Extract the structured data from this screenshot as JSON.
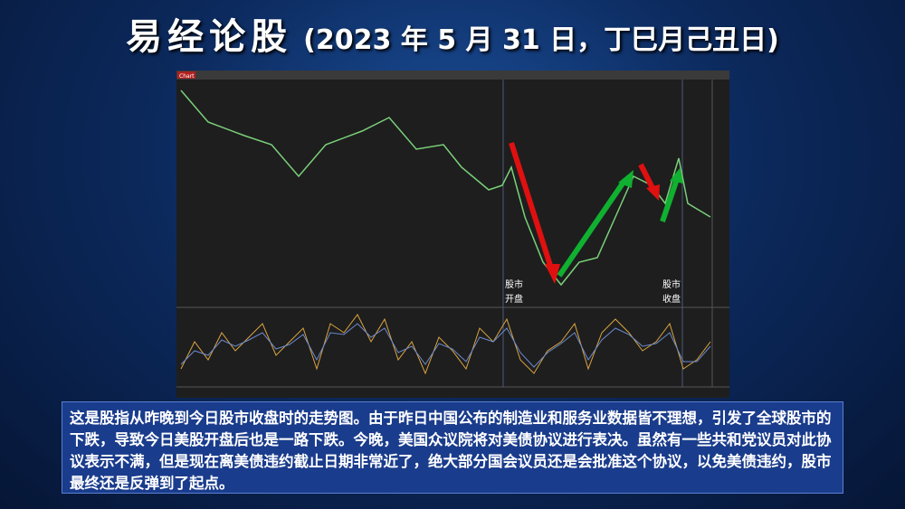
{
  "header": {
    "title": "易经论股",
    "subtitle": "(2023 年 5 月 31 日，丁巳月己丑日)"
  },
  "chart": {
    "window_label": "Chart",
    "open_label": [
      "股市",
      "开盘"
    ],
    "close_label": [
      "股市",
      "收盘"
    ]
  },
  "caption": "这是股指从昨晚到今日股市收盘时的走势图。由于昨日中国公布的制造业和服务业数据皆不理想，引发了全球股市的下跌，导致今日美股开盘后也是一路下跌。今晚，美国众议院将对美债协议进行表决。虽然有一些共和党议员对此协议表示不满，但是现在离美债违约截止日期非常近了，绝大部分国会议员还是会批准这个协议，以免美债违约，股市最终还是反弹到了起点。"
}
